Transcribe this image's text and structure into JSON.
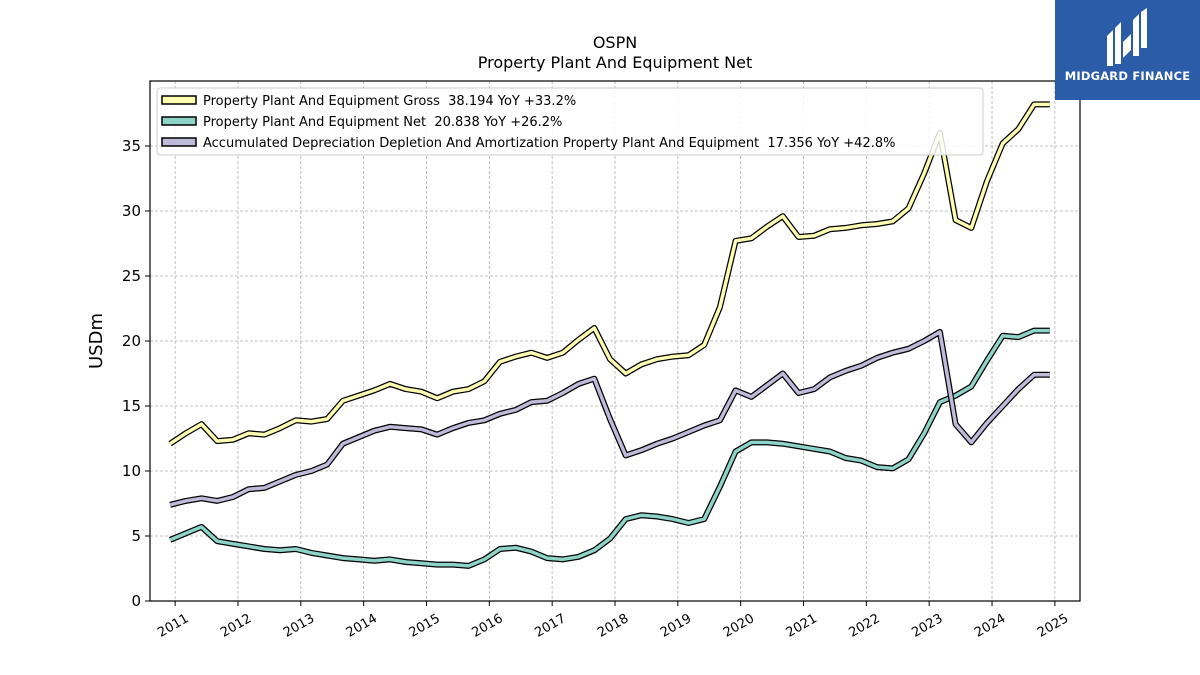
{
  "logo": {
    "text": "MIDGARD FINANCE",
    "color": "#2b5ca8"
  },
  "chart_data": {
    "type": "line",
    "title": "OSPN",
    "subtitle": "Property Plant And Equipment Net",
    "xlabel": "",
    "ylabel": "USDm",
    "xlim": [
      2010.6,
      2025.4
    ],
    "ylim": [
      0,
      40
    ],
    "yticks": [
      0,
      5,
      10,
      15,
      20,
      25,
      30,
      35
    ],
    "xticks": [
      "2011",
      "2012",
      "2013",
      "2014",
      "2015",
      "2016",
      "2017",
      "2018",
      "2019",
      "2020",
      "2021",
      "2022",
      "2023",
      "2024",
      "2025"
    ],
    "grid": true,
    "legend_position": "top-left",
    "x": [
      2010.92,
      2011.17,
      2011.42,
      2011.67,
      2011.92,
      2012.17,
      2012.42,
      2012.67,
      2012.92,
      2013.17,
      2013.42,
      2013.67,
      2013.92,
      2014.17,
      2014.42,
      2014.67,
      2014.92,
      2015.17,
      2015.42,
      2015.67,
      2015.92,
      2016.17,
      2016.42,
      2016.67,
      2016.92,
      2017.17,
      2017.42,
      2017.67,
      2017.92,
      2018.17,
      2018.42,
      2018.67,
      2018.92,
      2019.17,
      2019.42,
      2019.67,
      2019.92,
      2020.17,
      2020.42,
      2020.67,
      2020.92,
      2021.17,
      2021.42,
      2021.67,
      2021.92,
      2022.17,
      2022.42,
      2022.67,
      2022.92,
      2023.17,
      2023.42,
      2023.67,
      2023.92,
      2024.17,
      2024.42,
      2024.67,
      2024.92
    ],
    "series": [
      {
        "name": "Property Plant And Equipment Gross  38.194 YoY +33.2%",
        "color": "#ffffb3",
        "values": [
          12.1,
          12.9,
          13.6,
          12.3,
          12.4,
          12.9,
          12.8,
          13.3,
          13.9,
          13.8,
          14.0,
          15.4,
          15.8,
          16.2,
          16.7,
          16.3,
          16.1,
          15.6,
          16.1,
          16.3,
          16.9,
          18.4,
          18.8,
          19.1,
          18.7,
          19.1,
          20.1,
          21.0,
          18.6,
          17.5,
          18.2,
          18.6,
          18.8,
          18.9,
          19.7,
          22.6,
          27.7,
          27.9,
          28.8,
          29.6,
          28.0,
          28.1,
          28.6,
          28.7,
          28.9,
          29.0,
          29.2,
          30.2,
          32.9,
          36.0,
          29.3,
          28.7,
          32.3,
          35.2,
          36.3,
          38.2,
          38.2
        ]
      },
      {
        "name": "Property Plant And Equipment Net  20.838 YoY +26.2%",
        "color": "#8dd3c7",
        "values": [
          4.7,
          5.2,
          5.7,
          4.6,
          4.4,
          4.2,
          4.0,
          3.9,
          4.0,
          3.7,
          3.5,
          3.3,
          3.2,
          3.1,
          3.2,
          3.0,
          2.9,
          2.8,
          2.8,
          2.7,
          3.2,
          4.0,
          4.1,
          3.8,
          3.3,
          3.2,
          3.4,
          3.9,
          4.8,
          6.3,
          6.6,
          6.5,
          6.3,
          6.0,
          6.3,
          8.8,
          11.5,
          12.2,
          12.2,
          12.1,
          11.9,
          11.7,
          11.5,
          11.0,
          10.8,
          10.3,
          10.2,
          10.9,
          12.9,
          15.3,
          15.8,
          16.5,
          18.5,
          20.4,
          20.3,
          20.8,
          20.8
        ]
      },
      {
        "name": "Accumulated Depreciation Depletion And Amortization Property Plant And Equipment  17.356 YoY +42.8%",
        "color": "#bebada",
        "values": [
          7.4,
          7.7,
          7.9,
          7.7,
          8.0,
          8.6,
          8.7,
          9.2,
          9.7,
          10.0,
          10.5,
          12.1,
          12.6,
          13.1,
          13.4,
          13.3,
          13.2,
          12.8,
          13.3,
          13.7,
          13.9,
          14.4,
          14.7,
          15.3,
          15.4,
          16.0,
          16.7,
          17.1,
          14.0,
          11.2,
          11.6,
          12.1,
          12.5,
          13.0,
          13.5,
          13.9,
          16.2,
          15.7,
          16.6,
          17.5,
          16.0,
          16.3,
          17.2,
          17.7,
          18.1,
          18.7,
          19.1,
          19.4,
          20.0,
          20.7,
          13.6,
          12.2,
          13.7,
          15.0,
          16.3,
          17.4,
          17.4
        ]
      }
    ]
  }
}
